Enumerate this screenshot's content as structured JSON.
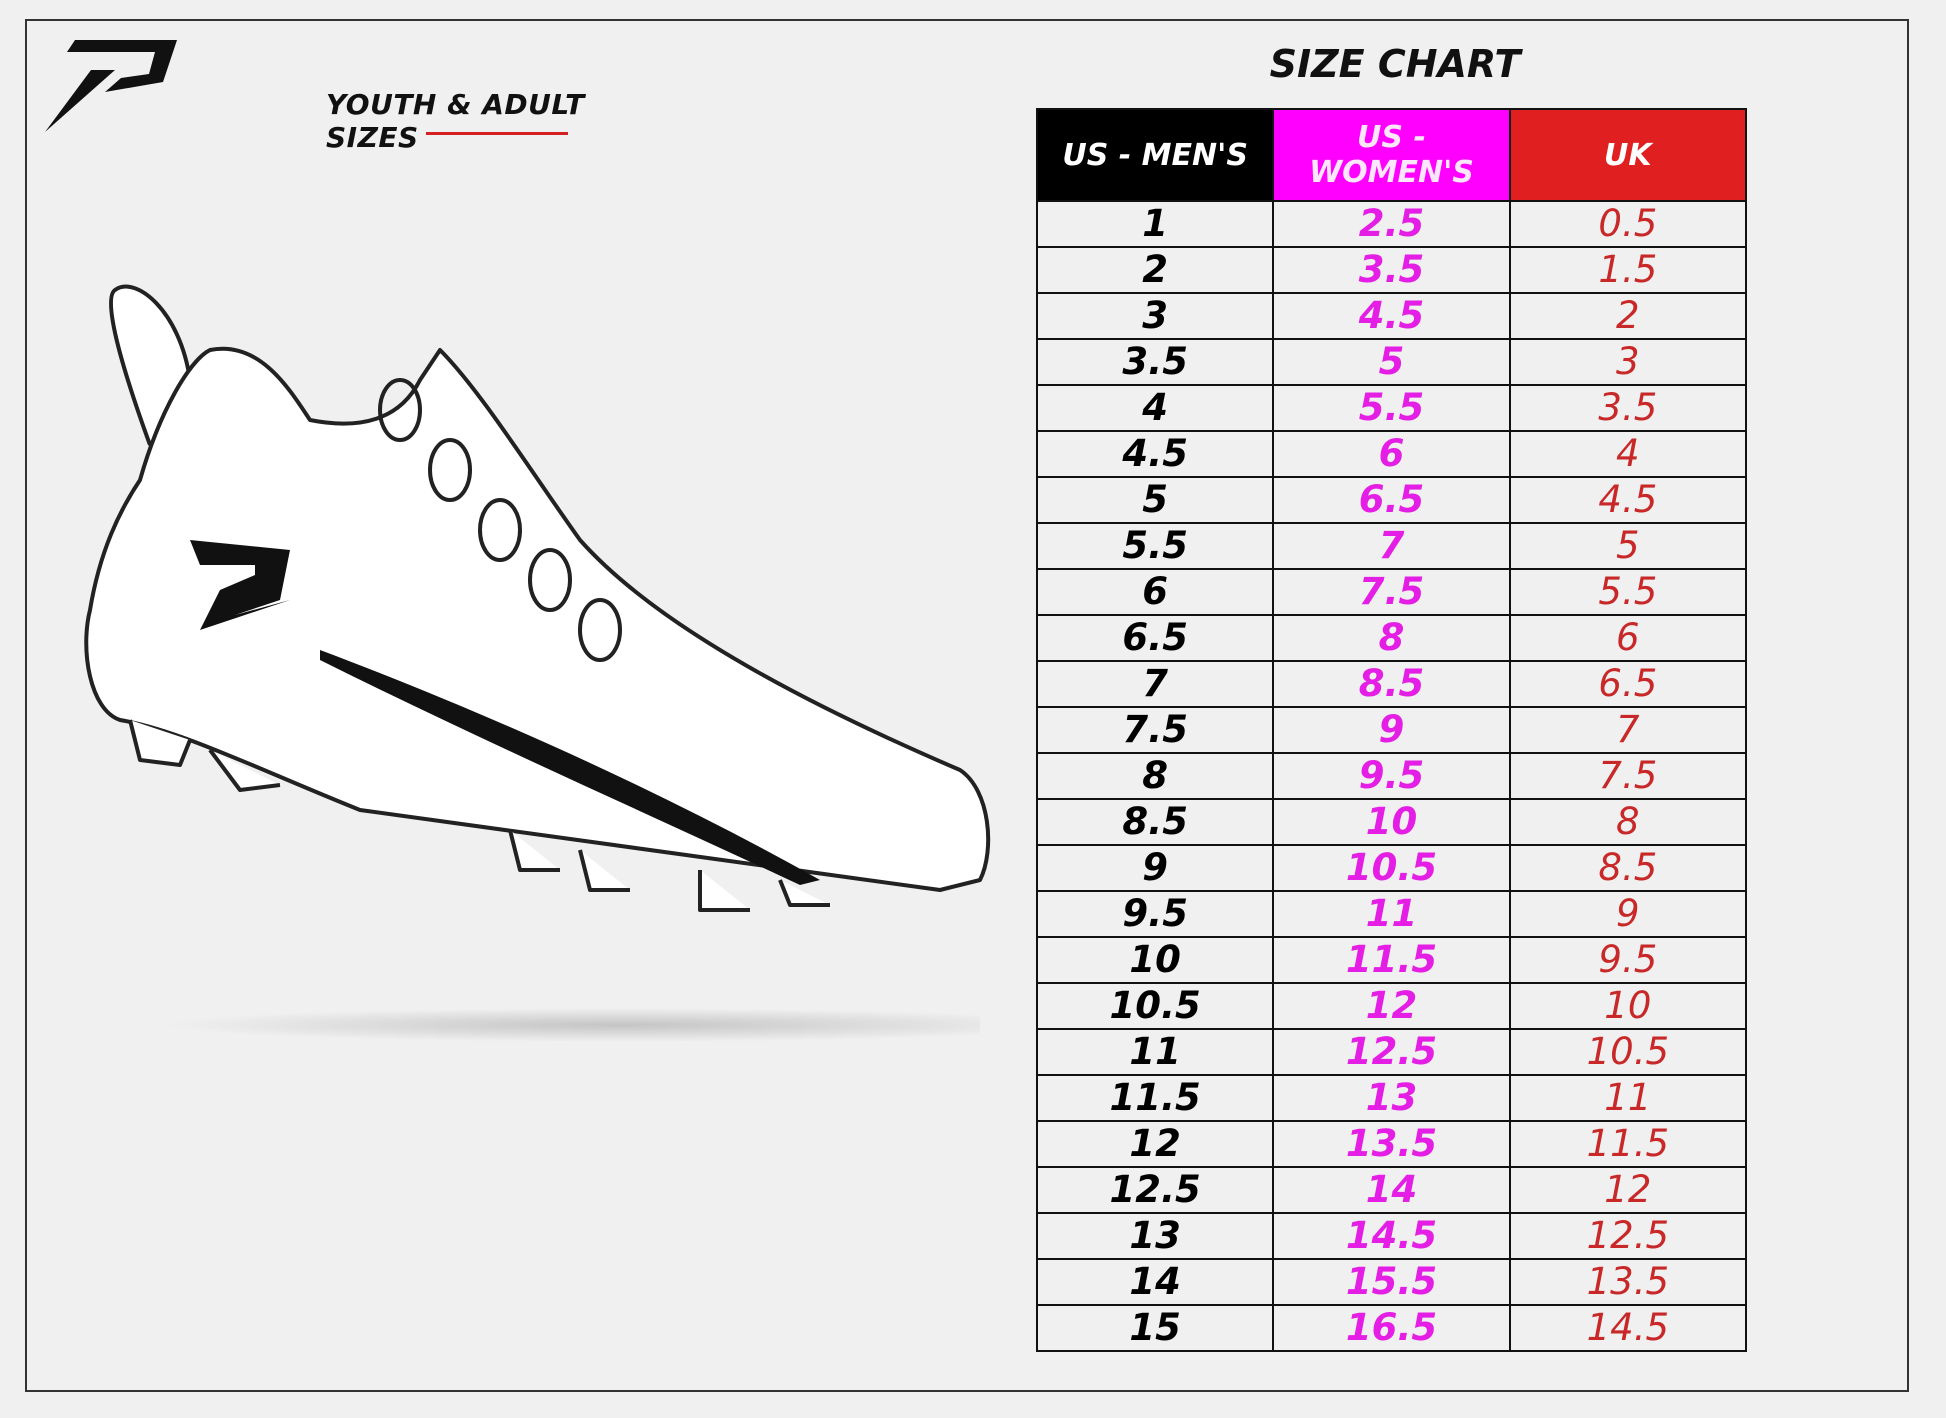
{
  "header": {
    "logo_text": "P",
    "subtitle": "YOUTH & ADULT SIZES",
    "title": "SIZE CHART"
  },
  "colors": {
    "men": "#000000",
    "women": "#ff00ff",
    "uk": "#e02020",
    "accent_underline": "#d42020"
  },
  "table": {
    "columns": [
      "US - MEN'S",
      "US - WOMEN'S",
      "UK"
    ],
    "rows": [
      [
        "1",
        "2.5",
        "0.5"
      ],
      [
        "2",
        "3.5",
        "1.5"
      ],
      [
        "3",
        "4.5",
        "2"
      ],
      [
        "3.5",
        "5",
        "3"
      ],
      [
        "4",
        "5.5",
        "3.5"
      ],
      [
        "4.5",
        "6",
        "4"
      ],
      [
        "5",
        "6.5",
        "4.5"
      ],
      [
        "5.5",
        "7",
        "5"
      ],
      [
        "6",
        "7.5",
        "5.5"
      ],
      [
        "6.5",
        "8",
        "6"
      ],
      [
        "7",
        "8.5",
        "6.5"
      ],
      [
        "7.5",
        "9",
        "7"
      ],
      [
        "8",
        "9.5",
        "7.5"
      ],
      [
        "8.5",
        "10",
        "8"
      ],
      [
        "9",
        "10.5",
        "8.5"
      ],
      [
        "9.5",
        "11",
        "9"
      ],
      [
        "10",
        "11.5",
        "9.5"
      ],
      [
        "10.5",
        "12",
        "10"
      ],
      [
        "11",
        "12.5",
        "10.5"
      ],
      [
        "11.5",
        "13",
        "11"
      ],
      [
        "12",
        "13.5",
        "11.5"
      ],
      [
        "12.5",
        "14",
        "12"
      ],
      [
        "13",
        "14.5",
        "12.5"
      ],
      [
        "14",
        "15.5",
        "13.5"
      ],
      [
        "15",
        "16.5",
        "14.5"
      ]
    ]
  }
}
